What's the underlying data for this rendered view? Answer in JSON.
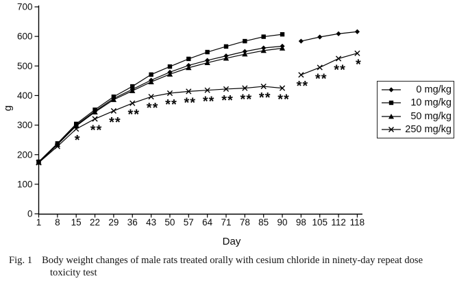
{
  "chart_data": {
    "type": "line",
    "xlabel": "Day",
    "ylabel": "g",
    "ylim": [
      0,
      700
    ],
    "yticks": [
      0,
      100,
      200,
      300,
      400,
      500,
      600,
      700
    ],
    "grid": false,
    "legend_position": "right",
    "line_color": "#000000",
    "categories": [
      "1",
      "8",
      "15",
      "22",
      "29",
      "36",
      "43",
      "50",
      "57",
      "64",
      "71",
      "78",
      "85",
      "90",
      "98",
      "105",
      "112",
      "118"
    ],
    "series": [
      {
        "name": "0 mg/kg",
        "marker": "diamond",
        "color": "#000000",
        "segments": [
          {
            "start": 0,
            "values": [
              175,
              236,
              300,
              347,
              390,
              421,
              452,
              479,
              502,
              519,
              534,
              549,
              561,
              567
            ]
          },
          {
            "start": 14,
            "values": [
              584,
              598,
              609,
              616
            ]
          }
        ]
      },
      {
        "name": "10 mg/kg",
        "marker": "square",
        "color": "#000000",
        "segments": [
          {
            "start": 0,
            "values": [
              176,
              238,
              304,
              352,
              396,
              431,
              471,
              498,
              524,
              547,
              566,
              584,
              599,
              607
            ]
          }
        ]
      },
      {
        "name": "50 mg/kg",
        "marker": "triangle",
        "color": "#000000",
        "segments": [
          {
            "start": 0,
            "values": [
              174,
              234,
              297,
              344,
              386,
              416,
              446,
              472,
              494,
              511,
              526,
              540,
              552,
              560
            ]
          }
        ]
      },
      {
        "name": "250 mg/kg",
        "marker": "x",
        "color": "#000000",
        "segments": [
          {
            "start": 0,
            "values": [
              173,
              228,
              287,
              321,
              348,
              374,
              396,
              408,
              414,
              418,
              422,
              425,
              431,
              425
            ]
          },
          {
            "start": 14,
            "values": [
              470,
              495,
              525,
              543
            ]
          }
        ]
      }
    ],
    "annotations": [
      {
        "day": "15",
        "label": "*"
      },
      {
        "day": "22",
        "label": "**"
      },
      {
        "day": "29",
        "label": "**"
      },
      {
        "day": "36",
        "label": "**"
      },
      {
        "day": "43",
        "label": "**"
      },
      {
        "day": "50",
        "label": "**"
      },
      {
        "day": "57",
        "label": "**"
      },
      {
        "day": "64",
        "label": "**"
      },
      {
        "day": "71",
        "label": "**"
      },
      {
        "day": "78",
        "label": "**"
      },
      {
        "day": "85",
        "label": "**"
      },
      {
        "day": "90",
        "label": "**"
      },
      {
        "day": "98",
        "label": "**"
      },
      {
        "day": "105",
        "label": "**"
      },
      {
        "day": "112",
        "label": "**"
      },
      {
        "day": "118",
        "label": "*"
      }
    ]
  },
  "caption": {
    "fig_label": "Fig. 1",
    "text": "Body weight changes of male rats treated orally with cesium chloride in ninety-day repeat dose",
    "text_line2": "toxicity test"
  }
}
